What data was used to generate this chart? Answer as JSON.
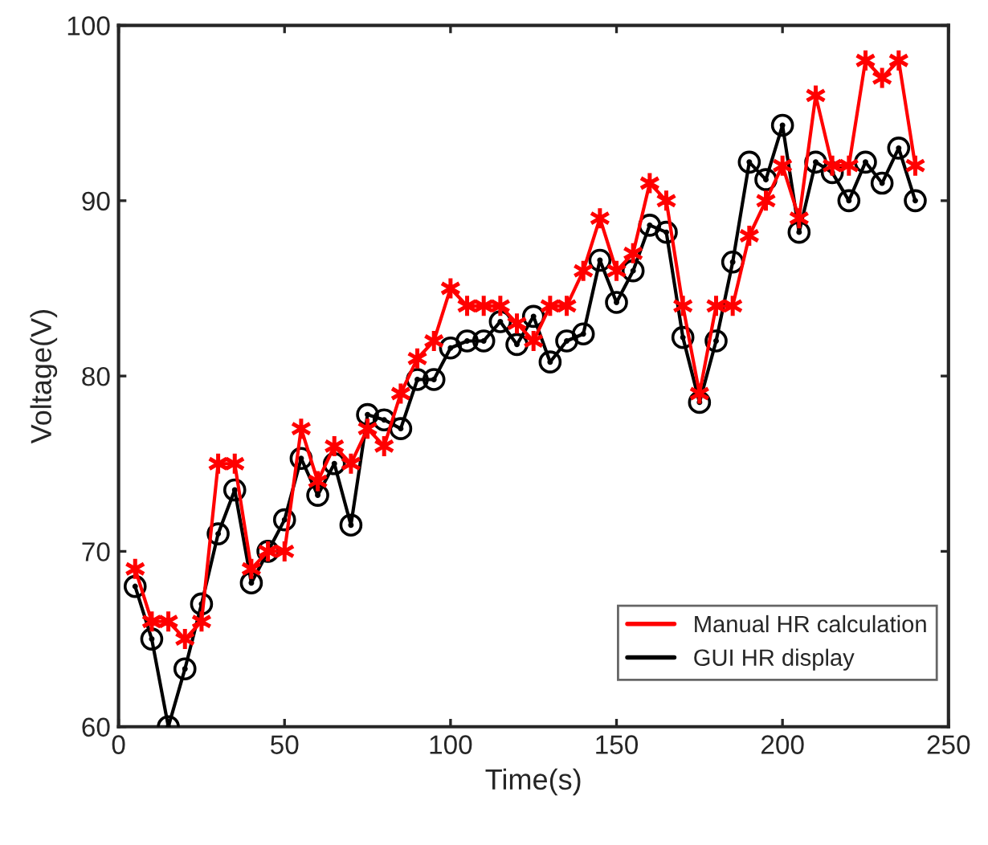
{
  "chart_data": {
    "type": "line",
    "xlabel": "Time(s)",
    "ylabel": "Voltage(V)",
    "x": [
      5,
      10,
      15,
      20,
      25,
      30,
      35,
      40,
      45,
      50,
      55,
      60,
      65,
      70,
      75,
      80,
      85,
      90,
      95,
      100,
      105,
      110,
      115,
      120,
      125,
      130,
      135,
      140,
      145,
      150,
      155,
      160,
      165,
      170,
      175,
      180,
      185,
      190,
      195,
      200,
      205,
      210,
      215,
      220,
      225,
      230,
      235,
      240
    ],
    "series": [
      {
        "name": "Manual HR calculation",
        "color": "#ff0000",
        "marker": "cross",
        "values": [
          69,
          66,
          66,
          65,
          66,
          75,
          75,
          69,
          70,
          70,
          77,
          74,
          76,
          75,
          77,
          76,
          79,
          81,
          82,
          85,
          84,
          84,
          84,
          83,
          82,
          84,
          84,
          86,
          89,
          86,
          87,
          91,
          90,
          84,
          79,
          84,
          84,
          88,
          90,
          92,
          89,
          96,
          92,
          92,
          98,
          97,
          98,
          92
        ]
      },
      {
        "name": "GUI HR display",
        "color": "#000000",
        "marker": "circle",
        "values": [
          68,
          65,
          60,
          63.3,
          67,
          71,
          73.5,
          68.2,
          70,
          71.8,
          75.3,
          73.2,
          75,
          71.5,
          77.8,
          77.5,
          77,
          79.8,
          79.8,
          81.6,
          82,
          82,
          83.1,
          81.8,
          83.4,
          80.8,
          82,
          82.4,
          86.6,
          84.2,
          86,
          88.6,
          88.2,
          82.2,
          78.5,
          82,
          86.5,
          92.2,
          91.2,
          94.3,
          88.2,
          92.2,
          91.6,
          90,
          92.2,
          91,
          93,
          90
        ]
      }
    ],
    "xlim": [
      0,
      250
    ],
    "xticks": [
      0,
      50,
      100,
      150,
      200,
      250
    ],
    "ylim": [
      60,
      100
    ],
    "yticks": [
      60,
      70,
      80,
      90,
      100
    ],
    "grid": false,
    "legend": "bottom right",
    "line_style": "solid"
  }
}
